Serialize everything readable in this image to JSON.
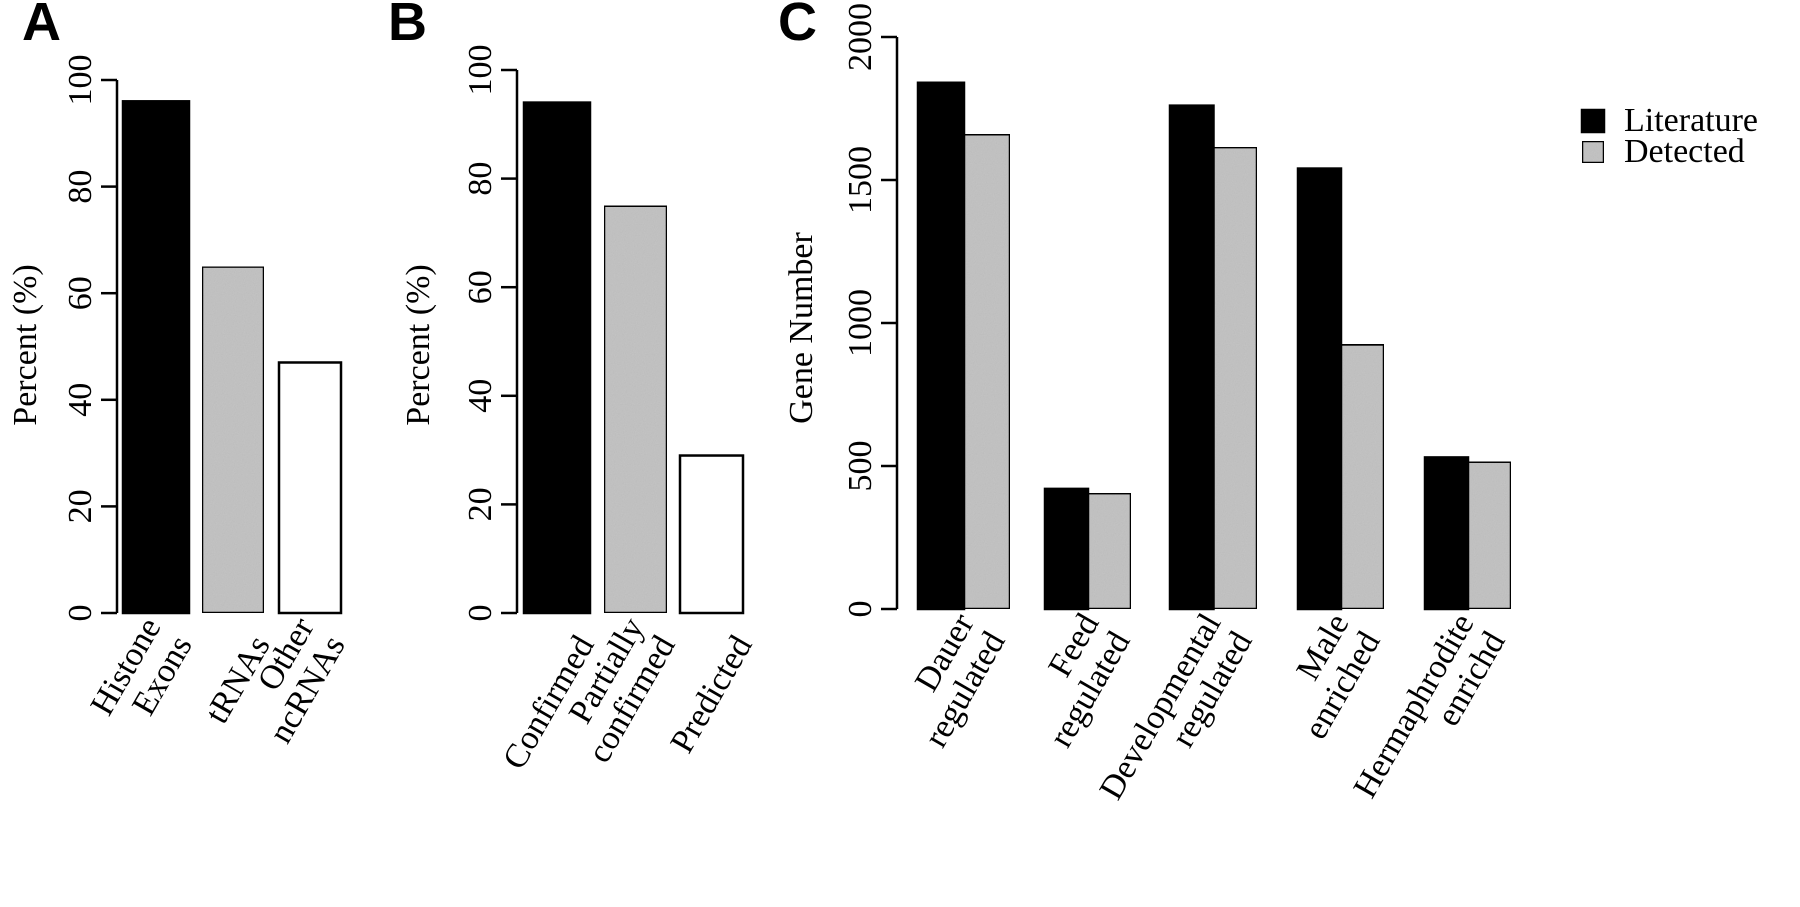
{
  "colors": {
    "black": "#000000",
    "gray": "#c4c4c4",
    "white": "#ffffff"
  },
  "chart_data": [
    {
      "panel": "A",
      "type": "bar",
      "ylabel": "Percent (%)",
      "ylim": [
        0,
        100
      ],
      "yticks": [
        0,
        20,
        40,
        60,
        80,
        100
      ],
      "categories": [
        [
          "Histone",
          "Exons"
        ],
        [
          "tRNAs"
        ],
        [
          "Other",
          "ncRNAs"
        ]
      ],
      "values": [
        96,
        65,
        47
      ],
      "fills": [
        "black",
        "gray",
        "white"
      ]
    },
    {
      "panel": "B",
      "type": "bar",
      "ylabel": "Percent (%)",
      "ylim": [
        0,
        100
      ],
      "yticks": [
        0,
        20,
        40,
        60,
        80,
        100
      ],
      "categories": [
        [
          "Confirmed"
        ],
        [
          "Partially",
          "confirmed"
        ],
        [
          "Predicted"
        ]
      ],
      "values": [
        94,
        75,
        29
      ],
      "fills": [
        "black",
        "gray",
        "white"
      ]
    },
    {
      "panel": "C",
      "type": "bar",
      "ylabel": "Gene Number",
      "ylim": [
        0,
        2000
      ],
      "yticks": [
        0,
        500,
        1000,
        1500,
        2000
      ],
      "categories": [
        [
          "Dauer",
          "regulated"
        ],
        [
          "Feed",
          "regulated"
        ],
        [
          "Developmental",
          "regulated"
        ],
        [
          "Male",
          "enriched"
        ],
        [
          "Hermaphrodite",
          "enrichd"
        ]
      ],
      "series": [
        {
          "name": "Literature",
          "color": "black",
          "values": [
            1840,
            420,
            1760,
            1540,
            530
          ]
        },
        {
          "name": "Detected",
          "color": "gray",
          "values": [
            1660,
            405,
            1615,
            925,
            515
          ]
        }
      ],
      "legend": "top-right"
    }
  ]
}
